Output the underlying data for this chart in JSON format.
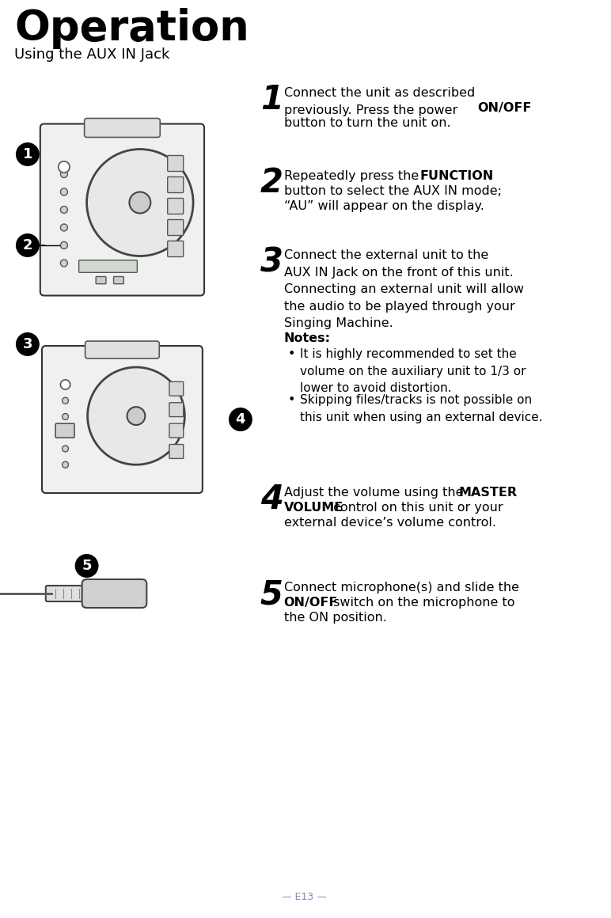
{
  "title": "Operation",
  "subtitle": "Using the AUX IN Jack",
  "page_number": "E13",
  "bg_color": "#ffffff",
  "text_color": "#000000",
  "page_num_color": "#8888bb",
  "steps": [
    {
      "num": "1",
      "text_parts": [
        {
          "text": "Connect the unit as described\npreviously. Press the power ",
          "bold": false
        },
        {
          "text": "ON/OFF",
          "bold": true
        },
        {
          "text": "\nbutton to turn the unit on.",
          "bold": false
        }
      ]
    },
    {
      "num": "2",
      "text_parts": [
        {
          "text": "Repeatedly press the ",
          "bold": false
        },
        {
          "text": "FUNCTION",
          "bold": true
        },
        {
          "text": "\nbutton to select the AUX IN mode;\n“AU” will appear on the display.",
          "bold": false
        }
      ]
    },
    {
      "num": "3",
      "text_parts": [
        {
          "text": "Connect the external unit to the\nAUX IN Jack on the front of this unit.\nConnecting an external unit will allow\nthe audio to be played through your\nSinging Machine.",
          "bold": false
        }
      ]
    },
    {
      "num": "4",
      "text_parts": [
        {
          "text": "Adjust the volume using the ",
          "bold": false
        },
        {
          "text": "MASTER\nVOLUME",
          "bold": true
        },
        {
          "text": " control on this unit or your\nexternal device’s volume control.",
          "bold": false
        }
      ]
    },
    {
      "num": "5",
      "text_parts": [
        {
          "text": "Connect microphone(s) and slide the\n",
          "bold": false
        },
        {
          "text": "ON/OFF",
          "bold": true
        },
        {
          "text": " switch on the microphone to\nthe ON position.",
          "bold": false
        }
      ]
    }
  ],
  "notes_header": "Notes:",
  "notes": [
    "It is highly recommended to set the\nvolume on the auxiliary unit to 1/3 or\nlower to avoid distortion.",
    "Skipping files/tracks is not possible on\nthis unit when using an external device."
  ]
}
